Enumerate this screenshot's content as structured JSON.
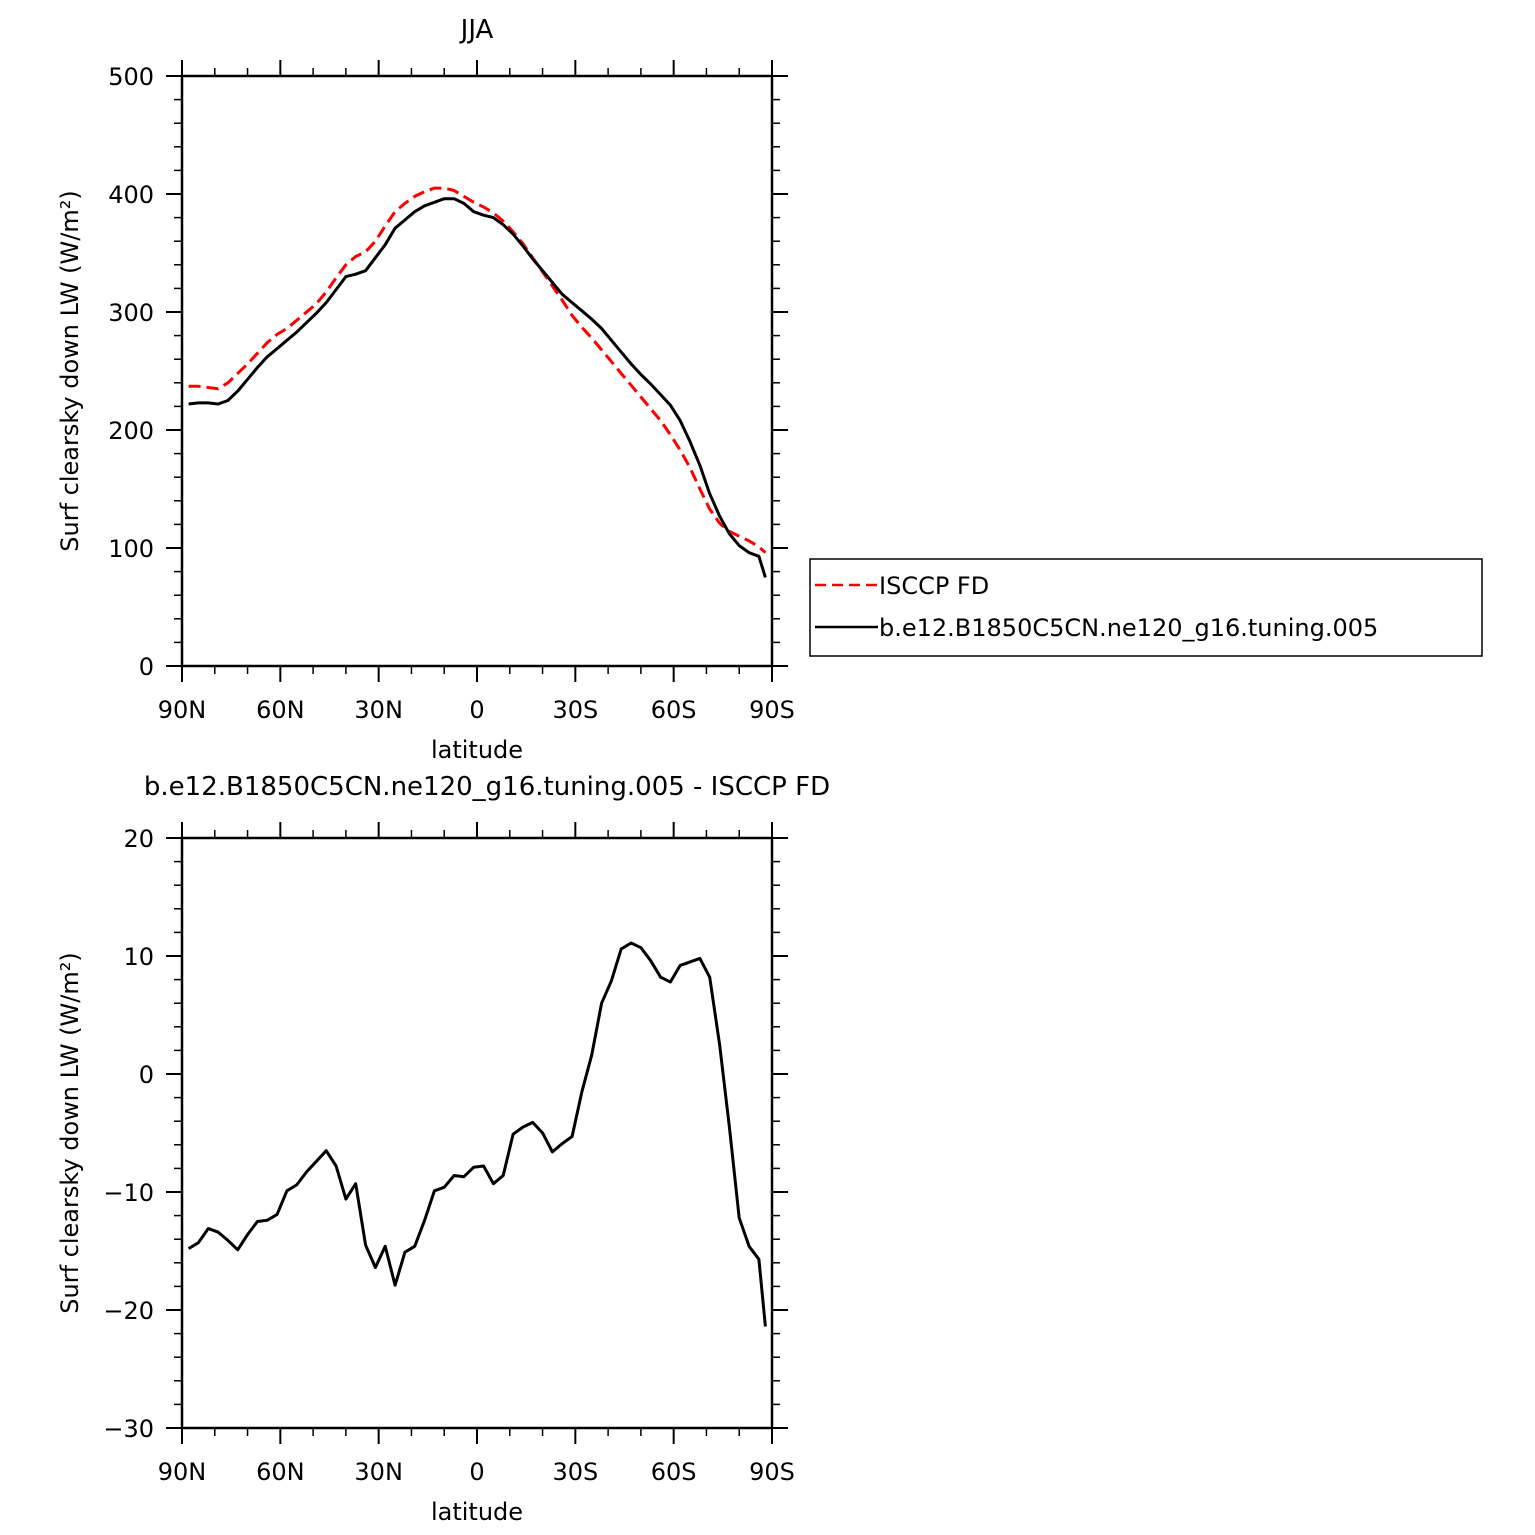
{
  "chart_data": [
    {
      "type": "line",
      "title": "JJA",
      "xlabel": "latitude",
      "ylabel": "Surf clearsky down LW (W/m²)",
      "xlim": [
        90,
        -90
      ],
      "ylim": [
        0,
        500
      ],
      "yticks": [
        "0",
        "100",
        "200",
        "300",
        "400",
        "500"
      ],
      "xticks": [
        {
          "label": "90N",
          "value": 90
        },
        {
          "label": "60N",
          "value": 60
        },
        {
          "label": "30N",
          "value": 30
        },
        {
          "label": "0",
          "value": 0
        },
        {
          "label": "30S",
          "value": -30
        },
        {
          "label": "60S",
          "value": -60
        },
        {
          "label": "90S",
          "value": -90
        }
      ],
      "legend_position": "right",
      "series": [
        {
          "name": "ISCCP FD",
          "color": "#ff0000",
          "dash": true,
          "x": [
            88,
            85,
            82,
            79,
            76,
            73,
            70,
            67,
            64,
            61,
            58,
            55,
            52,
            49,
            46,
            43,
            40,
            37,
            34,
            31,
            28,
            25,
            22,
            19,
            16,
            13,
            10,
            7,
            4,
            1,
            -2,
            -5,
            -8,
            -11,
            -14,
            -17,
            -20,
            -23,
            -26,
            -29,
            -32,
            -35,
            -38,
            -41,
            -44,
            -47,
            -50,
            -53,
            -56,
            -59,
            -62,
            -65,
            -68,
            -71,
            -74,
            -77,
            -80,
            -83,
            -86,
            -88
          ],
          "y": [
            237,
            237,
            236,
            235,
            240,
            248,
            256,
            265,
            274,
            281,
            286,
            293,
            300,
            307,
            317,
            329,
            340,
            347,
            351,
            360,
            373,
            385,
            392,
            398,
            402,
            405,
            405,
            403,
            398,
            393,
            389,
            384,
            377,
            368,
            358,
            346,
            334,
            322,
            310,
            297,
            287,
            278,
            268,
            258,
            248,
            238,
            228,
            218,
            208,
            196,
            183,
            168,
            150,
            133,
            121,
            114,
            110,
            106,
            101,
            96
          ]
        },
        {
          "name": "b.e12.B1850C5CN.ne120_g16.tuning.005",
          "color": "#000000",
          "dash": false,
          "x": [
            88,
            85,
            82,
            79,
            76,
            73,
            70,
            67,
            64,
            61,
            58,
            55,
            52,
            49,
            46,
            43,
            40,
            37,
            34,
            31,
            28,
            25,
            22,
            19,
            16,
            13,
            10,
            7,
            4,
            1,
            -2,
            -5,
            -8,
            -11,
            -14,
            -17,
            -20,
            -23,
            -26,
            -29,
            -32,
            -35,
            -38,
            -41,
            -44,
            -47,
            -50,
            -53,
            -56,
            -59,
            -62,
            -65,
            -68,
            -71,
            -74,
            -77,
            -80,
            -83,
            -86,
            -88
          ],
          "y": [
            222,
            223,
            223,
            222,
            225,
            233,
            243,
            253,
            262,
            269,
            276,
            283,
            291,
            299,
            308,
            319,
            330,
            332,
            335,
            346,
            357,
            371,
            378,
            385,
            390,
            393,
            396,
            396,
            392,
            385,
            382,
            380,
            374,
            366,
            356,
            345,
            335,
            325,
            315,
            308,
            301,
            294,
            286,
            276,
            266,
            256,
            247,
            239,
            230,
            221,
            208,
            190,
            170,
            146,
            127,
            112,
            102,
            96,
            93,
            75
          ]
        }
      ]
    },
    {
      "type": "line",
      "title": "b.e12.B1850C5CN.ne120_g16.tuning.005 - ISCCP FD",
      "xlabel": "latitude",
      "ylabel": "Surf clearsky down LW (W/m²)",
      "xlim": [
        90,
        -90
      ],
      "ylim": [
        -30,
        20
      ],
      "yticks": [
        "−30",
        "−20",
        "−10",
        "0",
        "10",
        "20"
      ],
      "xticks": [
        {
          "label": "90N",
          "value": 90
        },
        {
          "label": "60N",
          "value": 60
        },
        {
          "label": "30N",
          "value": 30
        },
        {
          "label": "0",
          "value": 0
        },
        {
          "label": "30S",
          "value": -30
        },
        {
          "label": "60S",
          "value": -60
        },
        {
          "label": "90S",
          "value": -90
        }
      ],
      "series": [
        {
          "color": "#000000",
          "dash": false,
          "x": [
            88,
            85,
            82,
            79,
            76,
            73,
            70,
            67,
            64,
            61,
            58,
            55,
            52,
            49,
            46,
            43,
            40,
            37,
            34,
            31,
            28,
            25,
            22,
            19,
            16,
            13,
            10,
            7,
            4,
            1,
            -2,
            -5,
            -8,
            -11,
            -14,
            -17,
            -20,
            -23,
            -26,
            -29,
            -32,
            -35,
            -38,
            -41,
            -44,
            -47,
            -50,
            -53,
            -56,
            -59,
            -62,
            -65,
            -68,
            -71,
            -74,
            -77,
            -80,
            -83,
            -86,
            -88
          ],
          "y": [
            -14.8,
            -14.3,
            -13.1,
            -13.4,
            -14.1,
            -14.9,
            -13.6,
            -12.5,
            -12.4,
            -11.9,
            -9.9,
            -9.4,
            -8.3,
            -7.4,
            -6.5,
            -7.8,
            -10.6,
            -9.3,
            -14.5,
            -16.4,
            -14.6,
            -17.9,
            -15.1,
            -14.6,
            -12.4,
            -9.9,
            -9.6,
            -8.6,
            -8.7,
            -7.9,
            -7.8,
            -9.3,
            -8.6,
            -5.1,
            -4.5,
            -4.1,
            -5.0,
            -6.6,
            -5.9,
            -5.3,
            -1.5,
            1.6,
            6.0,
            7.9,
            10.6,
            11.1,
            10.7,
            9.6,
            8.2,
            7.8,
            9.2,
            9.5,
            9.8,
            8.2,
            2.5,
            -4.5,
            -12.2,
            -14.6,
            -15.7,
            -21.4
          ]
        }
      ]
    }
  ]
}
